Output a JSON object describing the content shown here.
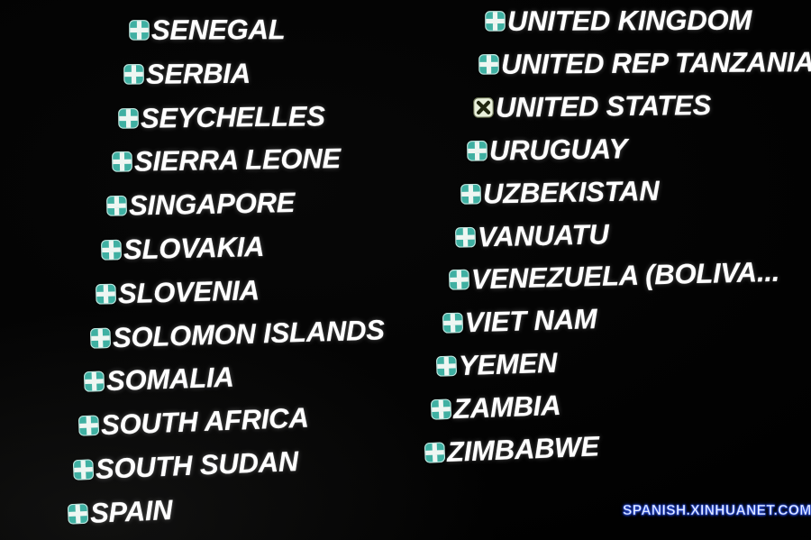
{
  "screen": {
    "columns": [
      {
        "items": [
          {
            "country": "SENEGAL",
            "vote": "yes"
          },
          {
            "country": "SERBIA",
            "vote": "yes"
          },
          {
            "country": "SEYCHELLES",
            "vote": "yes"
          },
          {
            "country": "SIERRA LEONE",
            "vote": "yes"
          },
          {
            "country": "SINGAPORE",
            "vote": "yes"
          },
          {
            "country": "SLOVAKIA",
            "vote": "yes"
          },
          {
            "country": "SLOVENIA",
            "vote": "yes"
          },
          {
            "country": "SOLOMON ISLANDS",
            "vote": "yes"
          },
          {
            "country": "SOMALIA",
            "vote": "yes"
          },
          {
            "country": "SOUTH AFRICA",
            "vote": "yes"
          },
          {
            "country": "SOUTH SUDAN",
            "vote": "yes"
          },
          {
            "country": "SPAIN",
            "vote": "yes"
          }
        ]
      },
      {
        "items": [
          {
            "country": "UNITED KINGDOM",
            "vote": "yes"
          },
          {
            "country": "UNITED REP TANZANIA",
            "vote": "yes"
          },
          {
            "country": "UNITED STATES",
            "vote": "no"
          },
          {
            "country": "URUGUAY",
            "vote": "yes"
          },
          {
            "country": "UZBEKISTAN",
            "vote": "yes"
          },
          {
            "country": "VANUATU",
            "vote": "yes"
          },
          {
            "country": "VENEZUELA (BOLIVA...",
            "vote": "yes"
          },
          {
            "country": "VIET NAM",
            "vote": "yes"
          },
          {
            "country": "YEMEN",
            "vote": "yes"
          },
          {
            "country": "ZAMBIA",
            "vote": "yes"
          },
          {
            "country": "ZIMBABWE",
            "vote": "yes"
          }
        ]
      }
    ]
  },
  "icons": {
    "yes": "plus-icon",
    "no": "x-icon"
  },
  "watermark": {
    "text": "SPANISH.XINHUANET.COM"
  },
  "colors": {
    "background": "#000000",
    "text": "#ffffff",
    "yes_icon_bg": "#3fb0a2",
    "yes_icon_cross": "#eef6f2",
    "yes_icon_border": "#bfe6df",
    "no_icon_bg": "#e9f0db",
    "no_icon_cross": "#20260f",
    "no_icon_border": "#6d7556",
    "watermark_glow": "#2f55e0"
  }
}
